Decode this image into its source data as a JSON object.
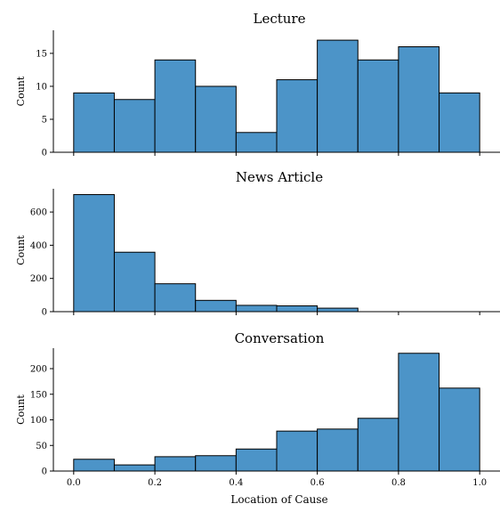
{
  "chart_data": [
    {
      "type": "bar",
      "title": "Lecture",
      "ylabel": "Count",
      "xlabel": "",
      "bin_edges": [
        0.0,
        0.1,
        0.2,
        0.3,
        0.4,
        0.5,
        0.6,
        0.7,
        0.8,
        0.9,
        1.0
      ],
      "values": [
        9,
        8,
        14,
        10,
        3,
        11,
        17,
        14,
        16,
        9
      ],
      "ylim": [
        0,
        18.5
      ],
      "yticks": [
        0,
        5,
        10,
        15
      ],
      "xticks": [
        0.0,
        0.2,
        0.4,
        0.6,
        0.8,
        1.0
      ],
      "show_xtick_labels": false,
      "grid": false,
      "bar_color": "#4c94c8"
    },
    {
      "type": "bar",
      "title": "News Article",
      "ylabel": "Count",
      "xlabel": "",
      "bin_edges": [
        0.0,
        0.1,
        0.2,
        0.3,
        0.4,
        0.5,
        0.6,
        0.7,
        0.8,
        0.9,
        1.0
      ],
      "values": [
        705,
        358,
        168,
        68,
        38,
        35,
        21,
        0,
        0,
        0
      ],
      "ylim": [
        0,
        740
      ],
      "yticks": [
        0,
        200,
        400,
        600
      ],
      "xticks": [
        0.0,
        0.2,
        0.4,
        0.6,
        0.8,
        1.0
      ],
      "show_xtick_labels": false,
      "grid": false,
      "bar_color": "#4c94c8"
    },
    {
      "type": "bar",
      "title": "Conversation",
      "ylabel": "Count",
      "xlabel": "Location of Cause",
      "bin_edges": [
        0.0,
        0.1,
        0.2,
        0.3,
        0.4,
        0.5,
        0.6,
        0.7,
        0.8,
        0.9,
        1.0
      ],
      "values": [
        23,
        12,
        28,
        30,
        43,
        78,
        82,
        103,
        230,
        162
      ],
      "ylim": [
        0,
        240
      ],
      "yticks": [
        0,
        50,
        100,
        150,
        200
      ],
      "xticks": [
        0.0,
        0.2,
        0.4,
        0.6,
        0.8,
        1.0
      ],
      "xtick_labels": [
        "0.0",
        "0.2",
        "0.4",
        "0.6",
        "0.8",
        "1.0"
      ],
      "show_xtick_labels": true,
      "grid": false,
      "bar_color": "#4c94c8"
    }
  ]
}
